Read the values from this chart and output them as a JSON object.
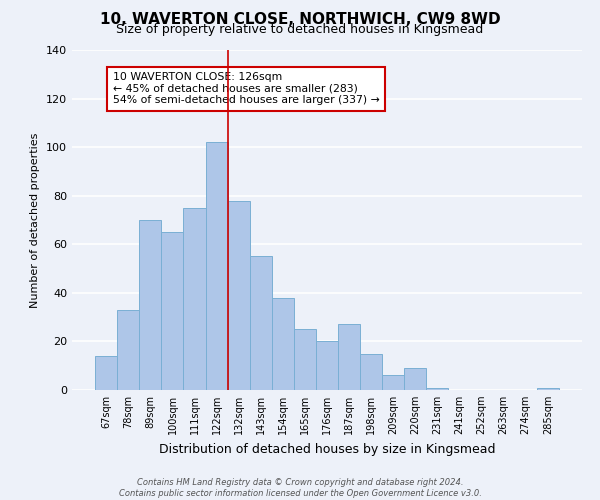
{
  "title": "10, WAVERTON CLOSE, NORTHWICH, CW9 8WD",
  "subtitle": "Size of property relative to detached houses in Kingsmead",
  "xlabel": "Distribution of detached houses by size in Kingsmead",
  "ylabel": "Number of detached properties",
  "bar_labels": [
    "67sqm",
    "78sqm",
    "89sqm",
    "100sqm",
    "111sqm",
    "122sqm",
    "132sqm",
    "143sqm",
    "154sqm",
    "165sqm",
    "176sqm",
    "187sqm",
    "198sqm",
    "209sqm",
    "220sqm",
    "231sqm",
    "241sqm",
    "252sqm",
    "263sqm",
    "274sqm",
    "285sqm"
  ],
  "bar_heights": [
    14,
    33,
    70,
    65,
    75,
    102,
    78,
    55,
    38,
    25,
    20,
    27,
    15,
    6,
    9,
    1,
    0,
    0,
    0,
    0,
    1
  ],
  "bar_color": "#aec6e8",
  "bar_edge_color": "#7aafd4",
  "vline_x_idx": 5.5,
  "vline_color": "#cc0000",
  "annotation_title": "10 WAVERTON CLOSE: 126sqm",
  "annotation_line1": "← 45% of detached houses are smaller (283)",
  "annotation_line2": "54% of semi-detached houses are larger (337) →",
  "annotation_box_color": "#ffffff",
  "annotation_box_edge": "#cc0000",
  "ylim": [
    0,
    140
  ],
  "yticks": [
    0,
    20,
    40,
    60,
    80,
    100,
    120,
    140
  ],
  "footer_line1": "Contains HM Land Registry data © Crown copyright and database right 2024.",
  "footer_line2": "Contains public sector information licensed under the Open Government Licence v3.0.",
  "background_color": "#edf1f9",
  "grid_color": "#ffffff",
  "title_fontsize": 11,
  "subtitle_fontsize": 9
}
